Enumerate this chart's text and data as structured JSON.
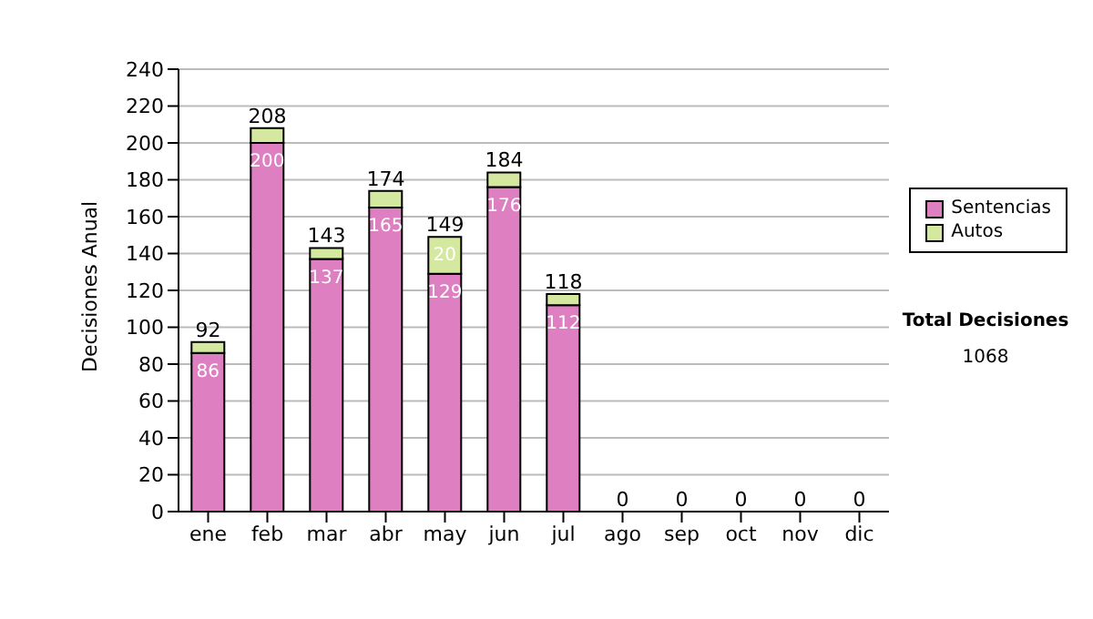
{
  "chart_data": {
    "type": "bar",
    "stacked": true,
    "ylabel": "Decisiones Anual",
    "categories": [
      "ene",
      "feb",
      "mar",
      "abr",
      "may",
      "jun",
      "jul",
      "ago",
      "sep",
      "oct",
      "nov",
      "dic"
    ],
    "series": [
      {
        "name": "Sentencias",
        "color": "#dd7fc0",
        "values": [
          86,
          200,
          137,
          165,
          129,
          176,
          112,
          0,
          0,
          0,
          0,
          0
        ],
        "value_labels": [
          "86",
          "200",
          "137",
          "165",
          "129",
          "176",
          "112",
          null,
          null,
          null,
          null,
          null
        ]
      },
      {
        "name": "Autos",
        "color": "#d4e8a0",
        "values": [
          6,
          8,
          6,
          9,
          20,
          8,
          6,
          0,
          0,
          0,
          0,
          0
        ],
        "value_labels": [
          null,
          null,
          null,
          null,
          "20",
          null,
          null,
          null,
          null,
          null,
          null,
          null
        ]
      }
    ],
    "totals": [
      "92",
      "208",
      "143",
      "174",
      "149",
      "184",
      "118",
      "0",
      "0",
      "0",
      "0",
      "0"
    ],
    "ylim": [
      0,
      240
    ],
    "yticks": [
      0,
      20,
      40,
      60,
      80,
      100,
      120,
      140,
      160,
      180,
      200,
      220,
      240
    ],
    "grid": "y",
    "legend": "right",
    "annotations": [
      "Total Decisiones",
      "1068"
    ]
  }
}
